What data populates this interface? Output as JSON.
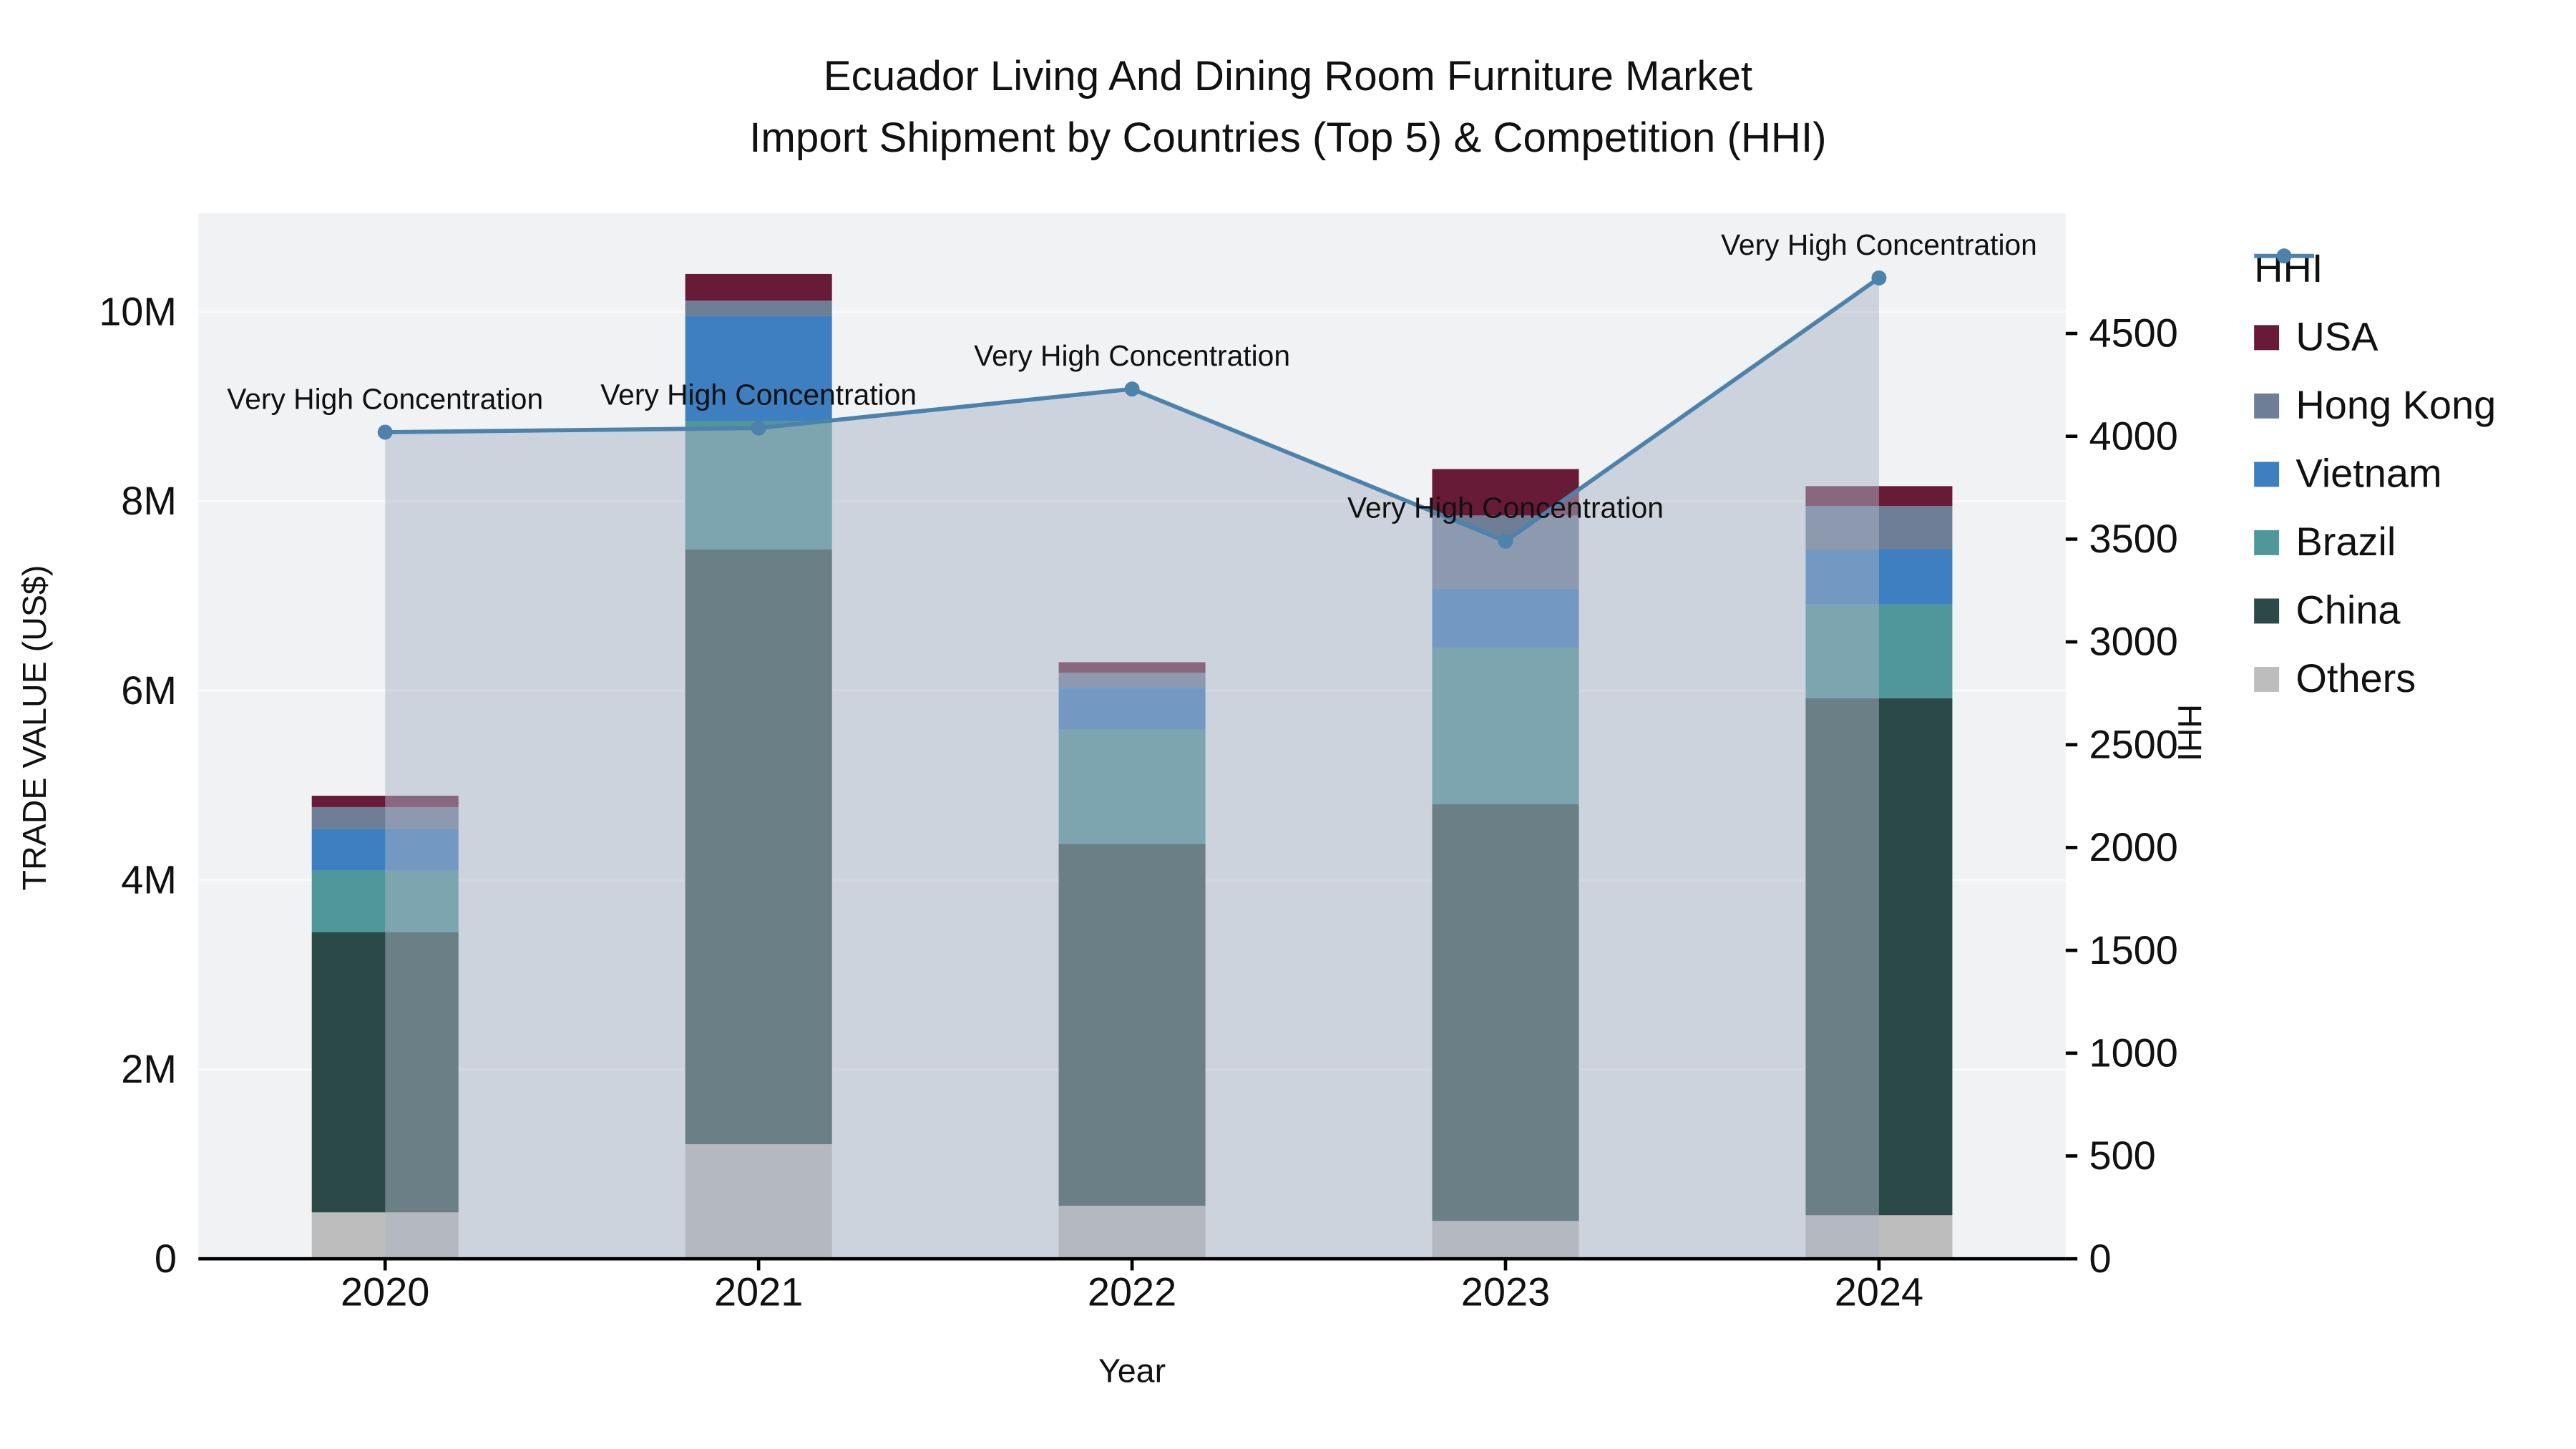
{
  "chart_data": {
    "type": "bar+line",
    "title": "Ecuador Living And Dining Room Furniture Market\nImport Shipment by Countries (Top 5) & Competition (HHI)",
    "xlabel": "Year",
    "categories": [
      "2020",
      "2021",
      "2022",
      "2023",
      "2024"
    ],
    "bar_value_unit": "millions of US$",
    "bar_series": [
      {
        "name": "Others",
        "color": "#bdbdbd",
        "values": [
          0.49,
          1.21,
          0.56,
          0.4,
          0.46
        ]
      },
      {
        "name": "China",
        "color": "#2b4a47",
        "values": [
          2.96,
          6.28,
          3.82,
          4.4,
          5.46
        ]
      },
      {
        "name": "Brazil",
        "color": "#4f979a",
        "values": [
          0.65,
          1.36,
          1.21,
          1.65,
          0.99
        ]
      },
      {
        "name": "Vietnam",
        "color": "#3d7fc1",
        "values": [
          0.44,
          1.11,
          0.44,
          0.63,
          0.58
        ]
      },
      {
        "name": "Hong Kong",
        "color": "#6e7e97",
        "values": [
          0.23,
          0.16,
          0.16,
          0.77,
          0.46
        ]
      },
      {
        "name": "USA",
        "color": "#681b36",
        "values": [
          0.12,
          0.28,
          0.11,
          0.49,
          0.21
        ]
      }
    ],
    "hhi_line": {
      "name": "HHI",
      "color": "#4d82ad",
      "area_fill": "rgba(169,180,197,0.5)",
      "values": [
        4020,
        4040,
        4230,
        3490,
        4770
      ]
    },
    "annotations": [
      {
        "x": "2020",
        "text": "Very High Concentration"
      },
      {
        "x": "2021",
        "text": "Very High Concentration"
      },
      {
        "x": "2022",
        "text": "Very High Concentration"
      },
      {
        "x": "2023",
        "text": "Very High Concentration"
      },
      {
        "x": "2024",
        "text": "Very High Concentration"
      }
    ],
    "yaxis_left": {
      "title": "TRADE VALUE (US$)",
      "range": [
        0,
        11.04
      ],
      "ticks": [
        {
          "value": 0,
          "label": "0"
        },
        {
          "value": 2,
          "label": "2M"
        },
        {
          "value": 4,
          "label": "4M"
        },
        {
          "value": 6,
          "label": "6M"
        },
        {
          "value": 8,
          "label": "8M"
        },
        {
          "value": 10,
          "label": "10M"
        }
      ]
    },
    "yaxis_right": {
      "title": "HHI",
      "range": [
        0,
        5084
      ],
      "ticks": [
        {
          "value": 0,
          "label": "0"
        },
        {
          "value": 500,
          "label": "500"
        },
        {
          "value": 1000,
          "label": "1000"
        },
        {
          "value": 1500,
          "label": "1500"
        },
        {
          "value": 2000,
          "label": "2000"
        },
        {
          "value": 2500,
          "label": "2500"
        },
        {
          "value": 3000,
          "label": "3000"
        },
        {
          "value": 3500,
          "label": "3500"
        },
        {
          "value": 4000,
          "label": "4000"
        },
        {
          "value": 4500,
          "label": "4500"
        }
      ]
    },
    "legend": [
      {
        "name": "HHI",
        "type": "line",
        "color": "#4d82ad"
      },
      {
        "name": "USA",
        "type": "square",
        "color": "#681b36"
      },
      {
        "name": "Hong Kong",
        "type": "square",
        "color": "#6e7e97"
      },
      {
        "name": "Vietnam",
        "type": "square",
        "color": "#3d7fc1"
      },
      {
        "name": "Brazil",
        "type": "square",
        "color": "#4f979a"
      },
      {
        "name": "China",
        "type": "square",
        "color": "#2b4a47"
      },
      {
        "name": "Others",
        "type": "square",
        "color": "#bdbdbd"
      }
    ],
    "plot_colors": {
      "plot_background": "#f1f2f4",
      "gridline": "#fafafa",
      "axis_line": "#000000",
      "text": "#111111"
    }
  }
}
